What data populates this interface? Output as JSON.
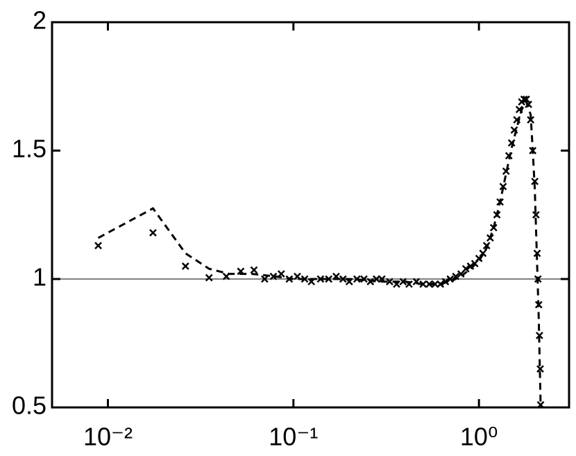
{
  "chart_data": {
    "type": "scatter",
    "xscale": "log",
    "xlim": [
      0.005,
      3.06
    ],
    "ylim": [
      0.5,
      2
    ],
    "xticks": [
      {
        "value": 0.01,
        "label": "10⁻²"
      },
      {
        "value": 0.1,
        "label": "10⁻¹"
      },
      {
        "value": 1,
        "label": "10⁰"
      }
    ],
    "yticks": [
      0.5,
      1,
      1.5,
      2
    ],
    "hline": 1,
    "series": [
      {
        "mode": "markers",
        "color": "#000000",
        "x": [
          0.00887,
          0.0175,
          0.0262,
          0.0351,
          0.0435,
          0.052,
          0.0613,
          0.07,
          0.078,
          0.086,
          0.095,
          0.105,
          0.115,
          0.125,
          0.14,
          0.155,
          0.17,
          0.185,
          0.2,
          0.22,
          0.24,
          0.26,
          0.28,
          0.3,
          0.33,
          0.36,
          0.39,
          0.42,
          0.46,
          0.5,
          0.54,
          0.58,
          0.62,
          0.66,
          0.7,
          0.75,
          0.8,
          0.85,
          0.9,
          0.95,
          1.0,
          1.05,
          1.1,
          1.15,
          1.2,
          1.25,
          1.3,
          1.35,
          1.4,
          1.45,
          1.5,
          1.55,
          1.6,
          1.65,
          1.7,
          1.75,
          1.8,
          1.85,
          1.9,
          1.95,
          2.0,
          2.03,
          2.06,
          2.08,
          2.1,
          2.12,
          2.14,
          2.15
        ],
        "values": [
          1.13,
          1.18,
          1.05,
          1.005,
          1.01,
          1.03,
          1.035,
          1.0,
          1.01,
          1.02,
          1.0,
          1.01,
          1.0,
          0.99,
          1.0,
          1.0,
          1.01,
          1.0,
          0.99,
          1.0,
          1.0,
          0.99,
          1.0,
          1.0,
          0.99,
          0.98,
          0.99,
          0.98,
          0.99,
          0.98,
          0.98,
          0.98,
          0.98,
          0.99,
          1.0,
          1.01,
          1.02,
          1.04,
          1.05,
          1.06,
          1.08,
          1.1,
          1.13,
          1.16,
          1.2,
          1.25,
          1.3,
          1.36,
          1.42,
          1.48,
          1.53,
          1.58,
          1.62,
          1.66,
          1.69,
          1.7,
          1.7,
          1.68,
          1.62,
          1.5,
          1.38,
          1.25,
          1.1,
          1.0,
          0.9,
          0.78,
          0.65,
          0.51
        ]
      },
      {
        "mode": "dashed-line",
        "color": "#000000",
        "x": [
          0.00887,
          0.0175,
          0.0262,
          0.0351,
          0.045,
          0.06,
          0.08,
          0.1,
          0.15,
          0.2,
          0.3,
          0.4,
          0.5,
          0.6,
          0.7,
          0.8,
          0.9,
          1.0,
          1.1,
          1.2,
          1.3,
          1.4,
          1.5,
          1.6,
          1.7,
          1.8,
          1.9,
          1.95,
          2.0,
          2.05,
          2.1,
          2.15
        ],
        "values": [
          1.16,
          1.275,
          1.1,
          1.04,
          1.02,
          1.02,
          1.01,
          1.0,
          1.0,
          1.0,
          0.99,
          0.99,
          0.98,
          0.98,
          0.99,
          1.01,
          1.04,
          1.07,
          1.12,
          1.2,
          1.3,
          1.41,
          1.51,
          1.59,
          1.66,
          1.69,
          1.64,
          1.5,
          1.35,
          1.1,
          0.85,
          0.51
        ]
      }
    ]
  }
}
